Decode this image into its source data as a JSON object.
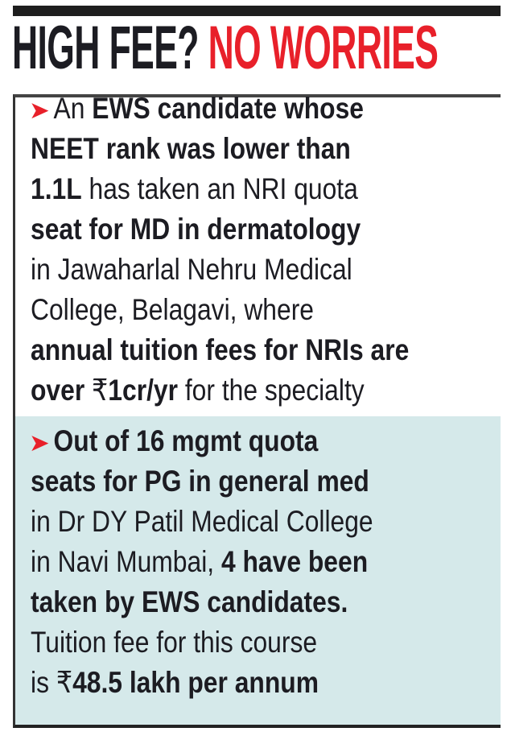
{
  "headline": {
    "part1": "HIGH FEE?",
    "part2": "NO WORRIES"
  },
  "colors": {
    "accent": "#e8202a",
    "panel2_bg": "#d5e9ea"
  },
  "bullet_icon": "red-arrowhead-icon",
  "items": [
    {
      "lines": [
        [
          {
            "t": "An ",
            "b": false
          },
          {
            "t": "EWS candidate whose",
            "b": true
          }
        ],
        [
          {
            "t": "NEET rank was lower than",
            "b": true
          }
        ],
        [
          {
            "t": "1.1L",
            "b": true
          },
          {
            "t": " has taken an NRI quota",
            "b": false
          }
        ],
        [
          {
            "t": "seat for MD in dermatology",
            "b": true
          }
        ],
        [
          {
            "t": "in Jawaharlal Nehru Medical",
            "b": false
          }
        ],
        [
          {
            "t": "College, Belagavi, where",
            "b": false
          }
        ],
        [
          {
            "t": "annual tuition fees for NRIs are",
            "b": true
          }
        ],
        [
          {
            "t": "over ",
            "b": true
          },
          {
            "t": "₹",
            "b": false
          },
          {
            "t": "1cr/yr",
            "b": true
          },
          {
            "t": " for the specialty",
            "b": false
          }
        ]
      ]
    },
    {
      "lines": [
        [
          {
            "t": "Out of 16 mgmt quota",
            "b": true
          }
        ],
        [
          {
            "t": "seats for PG in general med",
            "b": true
          }
        ],
        [
          {
            "t": "in Dr DY Patil Medical College",
            "b": false
          }
        ],
        [
          {
            "t": "in Navi Mumbai, ",
            "b": false
          },
          {
            "t": "4 have been",
            "b": true
          }
        ],
        [
          {
            "t": "taken by EWS candidates.",
            "b": true
          }
        ],
        [
          {
            "t": "Tuition fee for this course",
            "b": false
          }
        ],
        [
          {
            "t": "is ₹",
            "b": false
          },
          {
            "t": "48.5 lakh per annum",
            "b": true
          }
        ]
      ]
    }
  ]
}
